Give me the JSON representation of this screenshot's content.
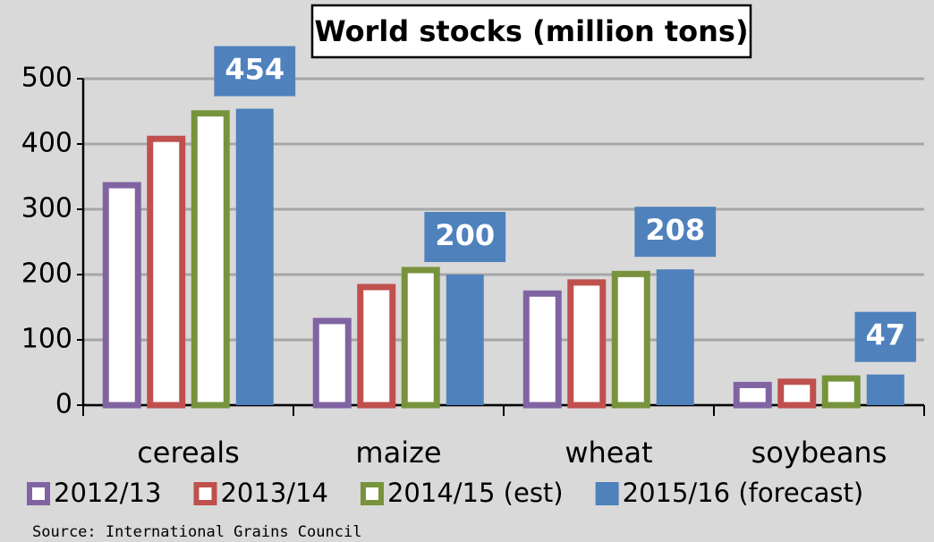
{
  "chart_data": {
    "type": "bar",
    "title": "World stocks (million tons)",
    "categories": [
      "cereals",
      "maize",
      "wheat",
      "soybeans"
    ],
    "series": [
      {
        "name": "2012/13",
        "color": "#8064a2",
        "style": "outline",
        "values": [
          341,
          133,
          175,
          35
        ]
      },
      {
        "name": "2013/14",
        "color": "#c0504d",
        "style": "outline",
        "values": [
          412,
          185,
          192,
          40
        ]
      },
      {
        "name": "2014/15 (est)",
        "color": "#77933c",
        "style": "outline",
        "values": [
          451,
          211,
          205,
          45
        ]
      },
      {
        "name": "2015/16 (forecast)",
        "color": "#4f81bd",
        "style": "solid",
        "data_labels": true,
        "values": [
          454,
          200,
          208,
          47
        ]
      }
    ],
    "ylim": [
      0,
      500
    ],
    "yticks": [
      0,
      100,
      200,
      300,
      400,
      500
    ],
    "grid": true,
    "legend": "bottom",
    "source": "Source: International Grains Council"
  }
}
